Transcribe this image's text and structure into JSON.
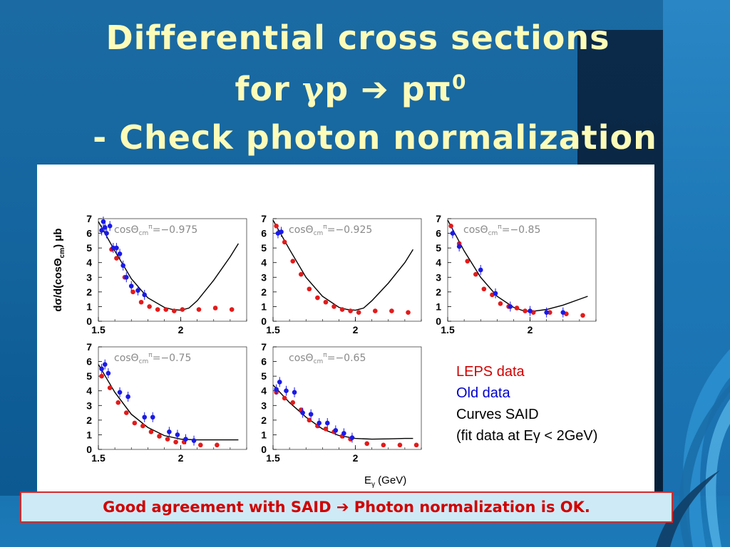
{
  "slide": {
    "title_line1": "Differential cross sections",
    "title_line2_prefix": "for ",
    "title_line2_gamma": "γ",
    "title_line2_p": "p ",
    "title_line2_arrow": "➔",
    "title_line2_ppi": " pπ",
    "title_line2_sup": "0",
    "title_line3": "- Check photon normalization",
    "conclusion": "Good agreement with SAID ➔ Photon normalization is OK.",
    "colors": {
      "title": "#fdfbb8",
      "leps": "#e21b1b",
      "old": "#1a1ae6",
      "said_curve": "#000000",
      "banner_text": "#d00000",
      "banner_bg": "#cfeaf7"
    }
  },
  "legend": {
    "leps": "LEPS data",
    "old": "Old data",
    "said": "Curves SAID",
    "fit": "(fit data at Eγ < 2GeV)"
  },
  "chart_data": [
    {
      "type": "scatter",
      "label": "cosΘcm^π=−0.975",
      "label_main": "cosΘ",
      "label_sub": "cm",
      "label_sup": "π",
      "label_value": "=−0.975",
      "ylabel": "dσ/d(cosΘcm) μb",
      "ylabel_parts": [
        "dσ/d(cosΘ",
        "cm",
        ") μb"
      ],
      "xlim": [
        1.5,
        2.4
      ],
      "ylim": [
        0,
        7
      ],
      "xticks": [
        "1.5",
        "2"
      ],
      "yticks": [
        "0",
        "1",
        "2",
        "3",
        "4",
        "5",
        "6",
        "7"
      ],
      "series": [
        {
          "name": "LEPS data",
          "x": [
            1.58,
            1.61,
            1.66,
            1.71,
            1.76,
            1.81,
            1.86,
            1.91,
            1.96,
            2.01,
            2.11,
            2.21,
            2.31
          ],
          "y": [
            4.9,
            4.3,
            3.0,
            2.0,
            1.3,
            1.0,
            0.8,
            0.8,
            0.7,
            0.8,
            0.8,
            0.9,
            0.8
          ]
        },
        {
          "name": "Old data",
          "x": [
            1.52,
            1.53,
            1.54,
            1.55,
            1.57,
            1.59,
            1.61,
            1.63,
            1.65,
            1.67,
            1.7,
            1.74,
            1.78
          ],
          "y": [
            6.2,
            6.8,
            6.4,
            6.0,
            6.5,
            5.0,
            5.0,
            4.6,
            3.8,
            3.0,
            2.4,
            2.1,
            1.8
          ]
        }
      ],
      "said_curve": {
        "x": [
          1.5,
          1.6,
          1.7,
          1.8,
          1.9,
          1.95,
          2.0,
          2.05,
          2.1,
          2.2,
          2.3,
          2.35
        ],
        "y": [
          6.8,
          4.8,
          2.9,
          1.6,
          0.95,
          0.8,
          0.75,
          0.9,
          1.4,
          2.8,
          4.4,
          5.3
        ]
      }
    },
    {
      "type": "scatter",
      "label": "cosΘcm^π=−0.925",
      "label_main": "cosΘ",
      "label_sub": "cm",
      "label_sup": "π",
      "label_value": "=−0.925",
      "xlim": [
        1.5,
        2.4
      ],
      "ylim": [
        0,
        7
      ],
      "xticks": [
        "1.5",
        "2"
      ],
      "yticks": [
        "0",
        "1",
        "2",
        "3",
        "4",
        "5",
        "6",
        "7"
      ],
      "series": [
        {
          "name": "LEPS data",
          "x": [
            1.52,
            1.57,
            1.62,
            1.67,
            1.72,
            1.77,
            1.82,
            1.87,
            1.92,
            1.97,
            2.02,
            2.12,
            2.22,
            2.32
          ],
          "y": [
            6.5,
            5.4,
            4.1,
            3.2,
            2.2,
            1.6,
            1.3,
            1.0,
            0.8,
            0.7,
            0.6,
            0.7,
            0.7,
            0.6
          ]
        },
        {
          "name": "Old data",
          "x": [
            1.53,
            1.55
          ],
          "y": [
            6.0,
            6.1
          ]
        }
      ],
      "said_curve": {
        "x": [
          1.5,
          1.6,
          1.7,
          1.8,
          1.9,
          1.95,
          2.0,
          2.05,
          2.1,
          2.2,
          2.3,
          2.35
        ],
        "y": [
          6.9,
          4.9,
          3.0,
          1.7,
          0.95,
          0.8,
          0.75,
          0.9,
          1.4,
          2.6,
          4.0,
          4.9
        ]
      }
    },
    {
      "type": "scatter",
      "label": "cosΘcm^π=−0.85",
      "label_main": "cosΘ",
      "label_sub": "cm",
      "label_sup": "π",
      "label_value": "=−0.85",
      "xlim": [
        1.5,
        2.4
      ],
      "ylim": [
        0,
        7
      ],
      "xticks": [
        "1.5",
        "2"
      ],
      "yticks": [
        "0",
        "1",
        "2",
        "3",
        "4",
        "5",
        "6",
        "7"
      ],
      "series": [
        {
          "name": "LEPS data",
          "x": [
            1.52,
            1.57,
            1.62,
            1.67,
            1.72,
            1.77,
            1.82,
            1.87,
            1.92,
            1.97,
            2.02,
            2.12,
            2.22,
            2.32
          ],
          "y": [
            6.5,
            5.3,
            4.1,
            3.2,
            2.2,
            1.8,
            1.2,
            1.0,
            0.9,
            0.7,
            0.6,
            0.6,
            0.5,
            0.4
          ]
        },
        {
          "name": "Old data",
          "x": [
            1.53,
            1.57,
            1.7,
            1.79,
            1.88,
            2.0,
            2.1,
            2.2
          ],
          "y": [
            6.0,
            5.1,
            3.5,
            1.9,
            1.0,
            0.7,
            0.6,
            0.6
          ]
        }
      ],
      "said_curve": {
        "x": [
          1.5,
          1.6,
          1.7,
          1.8,
          1.9,
          1.95,
          2.0,
          2.1,
          2.2,
          2.3,
          2.35
        ],
        "y": [
          6.9,
          4.8,
          3.0,
          1.7,
          0.95,
          0.75,
          0.65,
          0.8,
          1.1,
          1.5,
          1.7
        ]
      }
    },
    {
      "type": "scatter",
      "label": "cosΘcm^π=−0.75",
      "label_main": "cosΘ",
      "label_sub": "cm",
      "label_sup": "π",
      "label_value": "=−0.75",
      "xlim": [
        1.5,
        2.4
      ],
      "ylim": [
        0,
        7
      ],
      "xticks": [
        "1.5",
        "2"
      ],
      "yticks": [
        "0",
        "1",
        "2",
        "3",
        "4",
        "5",
        "6",
        "7"
      ],
      "series": [
        {
          "name": "LEPS data",
          "x": [
            1.52,
            1.57,
            1.62,
            1.67,
            1.72,
            1.77,
            1.82,
            1.87,
            1.92,
            1.97,
            2.02,
            2.12,
            2.22
          ],
          "y": [
            5.0,
            4.2,
            3.2,
            2.5,
            1.8,
            1.6,
            1.2,
            0.9,
            0.7,
            0.5,
            0.5,
            0.3,
            0.3
          ]
        },
        {
          "name": "Old data",
          "x": [
            1.52,
            1.54,
            1.56,
            1.63,
            1.68,
            1.78,
            1.83,
            1.93,
            1.98,
            2.03,
            2.08
          ],
          "y": [
            5.5,
            5.8,
            5.2,
            3.9,
            3.6,
            2.2,
            2.2,
            1.2,
            1.0,
            0.7,
            0.6
          ]
        }
      ],
      "said_curve": {
        "x": [
          1.5,
          1.6,
          1.7,
          1.8,
          1.9,
          2.0,
          2.1,
          2.2,
          2.3,
          2.35
        ],
        "y": [
          5.8,
          3.9,
          2.4,
          1.5,
          0.95,
          0.7,
          0.65,
          0.65,
          0.65,
          0.65
        ]
      }
    },
    {
      "type": "scatter",
      "label": "cosΘcm^π=−0.65",
      "label_main": "cosΘ",
      "label_sub": "cm",
      "label_sup": "π",
      "label_value": "=−0.65",
      "xlabel_main": "E",
      "xlabel_sub": "γ",
      "xlabel_rest": " (GeV)",
      "xlim": [
        1.5,
        2.4
      ],
      "ylim": [
        0,
        7
      ],
      "xticks": [
        "1.5",
        "2"
      ],
      "yticks": [
        "0",
        "1",
        "2",
        "3",
        "4",
        "5",
        "6",
        "7"
      ],
      "series": [
        {
          "name": "LEPS data",
          "x": [
            1.52,
            1.57,
            1.62,
            1.67,
            1.72,
            1.77,
            1.82,
            1.87,
            1.92,
            1.97,
            2.07,
            2.17,
            2.27,
            2.37
          ],
          "y": [
            3.9,
            3.5,
            3.2,
            2.7,
            2.0,
            1.6,
            1.4,
            1.2,
            0.9,
            0.7,
            0.4,
            0.3,
            0.3,
            0.3
          ]
        },
        {
          "name": "Old data",
          "x": [
            1.52,
            1.54,
            1.58,
            1.63,
            1.68,
            1.73,
            1.78,
            1.83,
            1.88,
            1.93,
            1.98
          ],
          "y": [
            4.1,
            4.6,
            4.0,
            3.9,
            2.5,
            2.4,
            1.8,
            1.8,
            1.3,
            1.1,
            0.8
          ]
        }
      ],
      "said_curve": {
        "x": [
          1.5,
          1.6,
          1.7,
          1.8,
          1.9,
          2.0,
          2.1,
          2.2,
          2.3,
          2.35
        ],
        "y": [
          4.4,
          3.2,
          2.2,
          1.4,
          0.95,
          0.75,
          0.7,
          0.72,
          0.75,
          0.75
        ]
      }
    }
  ]
}
